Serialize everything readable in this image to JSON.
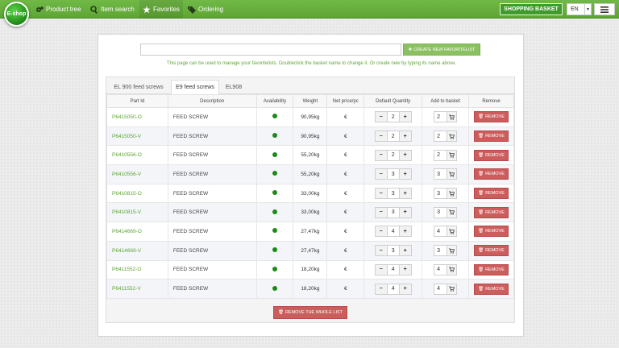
{
  "nav": {
    "logo": "E-shop",
    "items": [
      {
        "label": "Product tree",
        "icon": "gears-icon"
      },
      {
        "label": "Item search",
        "icon": "search-icon"
      },
      {
        "label": "Favorites",
        "icon": "star-icon"
      },
      {
        "label": "Ordering",
        "icon": "tags-icon"
      }
    ],
    "basket": "SHOPPING BASKET",
    "lang": "EN"
  },
  "page": {
    "create_label": "CREATE NEW FAVORITELIST",
    "new_list_value": "",
    "info": "This page can be used to manage your favoritelists. Doubleclick the basket name to change it. Or create new by typing its name above.",
    "tabs": [
      "EL 900 feed screws",
      "E9 feed screws",
      "EL908"
    ],
    "active_tab": "E9 feed screws",
    "columns": [
      "Part Id",
      "Description",
      "Availability",
      "Weight",
      "Net price/pc",
      "Default Quantity",
      "Add to basket",
      "Remove"
    ],
    "remove_label": "REMOVE",
    "remove_all_label": "REMOVE THE WHOLE LIST",
    "colors": {
      "accent": "#5ea535",
      "danger": "#cd5c5c",
      "available": "#1c8a16"
    },
    "rows": [
      {
        "part": "P6415050-O",
        "desc": "FEED SCREW",
        "weight": "90,95kg",
        "price": "€",
        "qty": "2",
        "basket": "2"
      },
      {
        "part": "P6415050-V",
        "desc": "FEED SCREW",
        "weight": "90,95kg",
        "price": "€",
        "qty": "2",
        "basket": "2"
      },
      {
        "part": "P6410556-O",
        "desc": "FEED SCREW",
        "weight": "55,20kg",
        "price": "€",
        "qty": "2",
        "basket": "2"
      },
      {
        "part": "P6410556-V",
        "desc": "FEED SCREW",
        "weight": "55,20kg",
        "price": "€",
        "qty": "3",
        "basket": "3"
      },
      {
        "part": "P6410815-O",
        "desc": "FEED SCREW",
        "weight": "33,00kg",
        "price": "€",
        "qty": "3",
        "basket": "3"
      },
      {
        "part": "P6410815-V",
        "desc": "FEED SCREW",
        "weight": "33,00kg",
        "price": "€",
        "qty": "3",
        "basket": "3"
      },
      {
        "part": "P6414669-O",
        "desc": "FEED SCREW",
        "weight": "27,47kg",
        "price": "€",
        "qty": "4",
        "basket": "4"
      },
      {
        "part": "P6414669-V",
        "desc": "FEED SCREW",
        "weight": "27,47kg",
        "price": "€",
        "qty": "3",
        "basket": "3"
      },
      {
        "part": "P6411552-O",
        "desc": "FEED SCREW",
        "weight": "18,20kg",
        "price": "€",
        "qty": "4",
        "basket": "4"
      },
      {
        "part": "P6411552-V",
        "desc": "FEED SCREW",
        "weight": "18,20kg",
        "price": "€",
        "qty": "4",
        "basket": "4"
      }
    ]
  }
}
